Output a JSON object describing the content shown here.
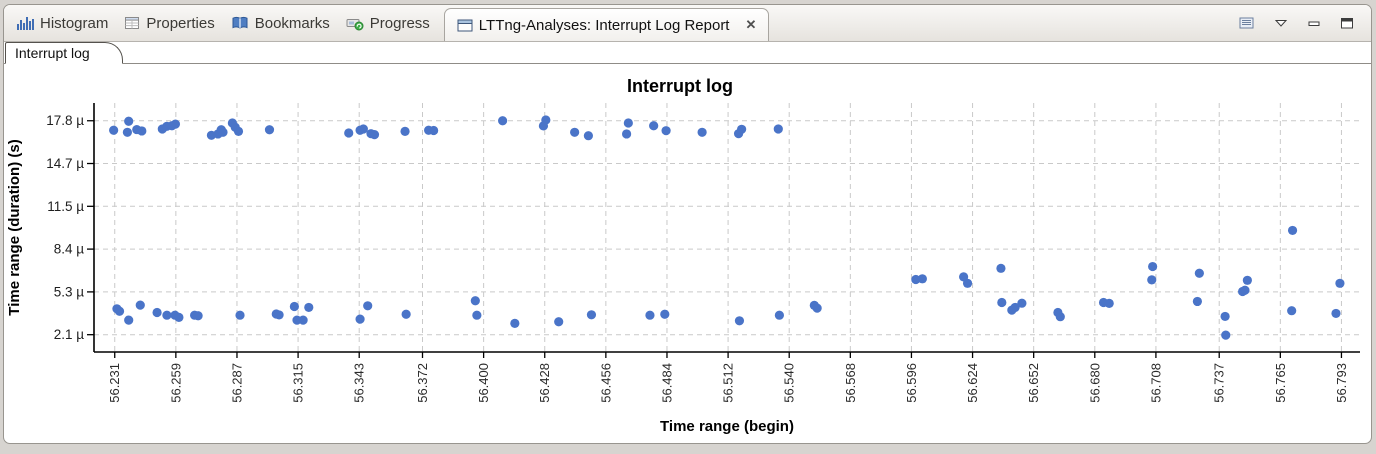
{
  "window": {
    "tabs": [
      {
        "label": "Histogram",
        "icon": "histogram-icon"
      },
      {
        "label": "Properties",
        "icon": "properties-icon"
      },
      {
        "label": "Bookmarks",
        "icon": "bookmarks-icon"
      },
      {
        "label": "Progress",
        "icon": "progress-icon"
      },
      {
        "label": "LTTng-Analyses: Interrupt Log Report",
        "icon": "view-window-icon",
        "active": true,
        "close_glyph": "✕"
      }
    ],
    "toolbar_icons": [
      "view-menu-icon",
      "dropdown-arrow-icon",
      "minimize-icon",
      "maximize-icon"
    ],
    "subtab": {
      "label": "Interrupt log"
    }
  },
  "chart_data": {
    "type": "scatter",
    "title": "Interrupt log",
    "xlabel": "Time range (begin)",
    "ylabel": "Time range (duration) (s)",
    "x_ticks": [
      "56.231",
      "56.259",
      "56.287",
      "56.315",
      "56.343",
      "56.372",
      "56.400",
      "56.428",
      "56.456",
      "56.484",
      "56.512",
      "56.540",
      "56.568",
      "56.596",
      "56.624",
      "56.652",
      "56.680",
      "56.708",
      "56.737",
      "56.765",
      "56.793"
    ],
    "y_tick_labels": [
      "17.8 µ",
      "14.7 µ",
      "11.5 µ",
      "8.4 µ",
      "5.3 µ",
      "2.1 µ"
    ],
    "y_tick_values": [
      17.8,
      14.66,
      11.52,
      8.38,
      5.24,
      2.1
    ],
    "xlim": [
      56.2215,
      56.8015
    ],
    "ylim_us": [
      0.83,
      19.1
    ],
    "grid": true,
    "grid_color": "#c9c9c9",
    "point_color": "#4a74c8",
    "points_units": "x: seconds, y: microseconds",
    "points": [
      [
        56.2305,
        17.1
      ],
      [
        56.2368,
        16.95
      ],
      [
        56.2374,
        17.76
      ],
      [
        56.2411,
        17.15
      ],
      [
        56.2434,
        17.05
      ],
      [
        56.2528,
        17.19
      ],
      [
        56.2549,
        17.39
      ],
      [
        56.2572,
        17.43
      ],
      [
        56.2588,
        17.55
      ],
      [
        56.2753,
        16.73
      ],
      [
        56.2783,
        16.83
      ],
      [
        56.2798,
        17.14
      ],
      [
        56.2806,
        16.95
      ],
      [
        56.2849,
        17.63
      ],
      [
        56.2862,
        17.32
      ],
      [
        56.2877,
        17.02
      ],
      [
        56.3019,
        17.14
      ],
      [
        56.3382,
        16.9
      ],
      [
        56.3434,
        17.1
      ],
      [
        56.3449,
        17.19
      ],
      [
        56.3484,
        16.85
      ],
      [
        56.35,
        16.78
      ],
      [
        56.364,
        17.02
      ],
      [
        56.3748,
        17.1
      ],
      [
        56.3771,
        17.08
      ],
      [
        56.4087,
        17.8
      ],
      [
        56.4274,
        17.42
      ],
      [
        56.4285,
        17.85
      ],
      [
        56.4417,
        16.95
      ],
      [
        56.448,
        16.7
      ],
      [
        56.4655,
        16.83
      ],
      [
        56.4663,
        17.63
      ],
      [
        56.4779,
        17.43
      ],
      [
        56.4836,
        17.07
      ],
      [
        56.5001,
        16.95
      ],
      [
        56.5168,
        16.85
      ],
      [
        56.5182,
        17.17
      ],
      [
        56.535,
        17.19
      ],
      [
        56.232,
        4.0
      ],
      [
        56.2332,
        3.82
      ],
      [
        56.2374,
        3.17
      ],
      [
        56.2427,
        4.27
      ],
      [
        56.2504,
        3.73
      ],
      [
        56.2549,
        3.53
      ],
      [
        56.2586,
        3.53
      ],
      [
        56.2604,
        3.37
      ],
      [
        56.2676,
        3.53
      ],
      [
        56.2692,
        3.49
      ],
      [
        56.2884,
        3.53
      ],
      [
        56.305,
        3.62
      ],
      [
        56.3063,
        3.55
      ],
      [
        56.3133,
        4.17
      ],
      [
        56.3145,
        3.17
      ],
      [
        56.3173,
        3.17
      ],
      [
        56.3199,
        4.1
      ],
      [
        56.3434,
        3.24
      ],
      [
        56.3469,
        4.22
      ],
      [
        56.3645,
        3.6
      ],
      [
        56.3962,
        4.59
      ],
      [
        56.3969,
        3.53
      ],
      [
        56.4143,
        2.93
      ],
      [
        56.4344,
        3.05
      ],
      [
        56.4494,
        3.56
      ],
      [
        56.4762,
        3.53
      ],
      [
        56.483,
        3.6
      ],
      [
        56.5172,
        3.12
      ],
      [
        56.5355,
        3.53
      ],
      [
        56.5515,
        4.25
      ],
      [
        56.5528,
        4.05
      ],
      [
        56.598,
        6.15
      ],
      [
        56.601,
        6.2
      ],
      [
        56.6199,
        6.34
      ],
      [
        56.6217,
        5.87
      ],
      [
        56.637,
        6.97
      ],
      [
        56.6374,
        4.46
      ],
      [
        56.642,
        3.9
      ],
      [
        56.6435,
        4.1
      ],
      [
        56.6466,
        4.41
      ],
      [
        56.6631,
        3.73
      ],
      [
        56.6642,
        3.42
      ],
      [
        56.684,
        4.46
      ],
      [
        56.6866,
        4.4
      ],
      [
        56.7061,
        6.12
      ],
      [
        56.7065,
        7.1
      ],
      [
        56.727,
        4.54
      ],
      [
        56.7279,
        6.61
      ],
      [
        56.7397,
        3.44
      ],
      [
        56.74,
        2.07
      ],
      [
        56.7477,
        5.27
      ],
      [
        56.7488,
        5.36
      ],
      [
        56.7499,
        6.09
      ],
      [
        56.7702,
        3.86
      ],
      [
        56.7706,
        9.75
      ],
      [
        56.7905,
        3.66
      ],
      [
        56.7923,
        5.87
      ]
    ]
  }
}
